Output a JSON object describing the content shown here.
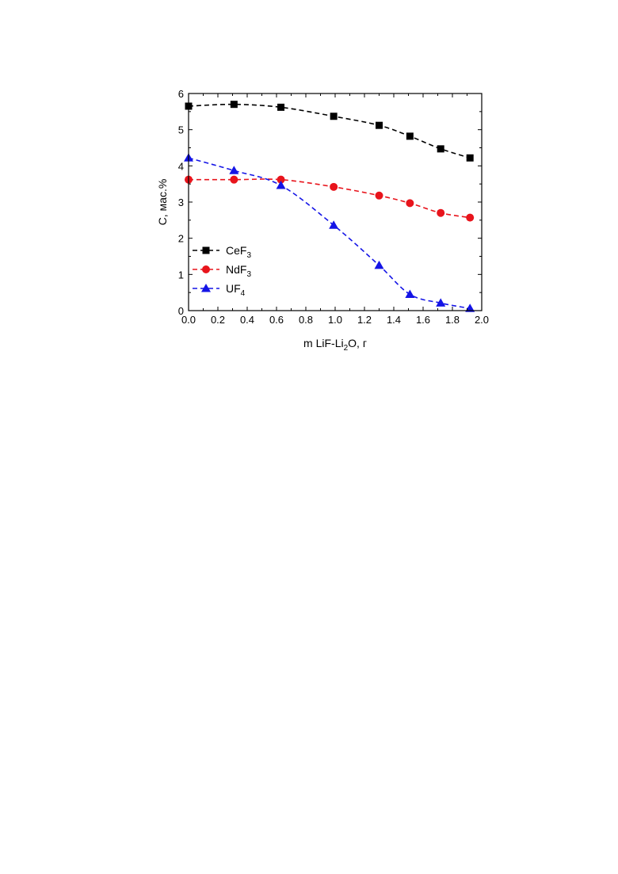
{
  "chart_data": {
    "type": "line",
    "xlabel": {
      "main": "m LiF-Li",
      "sub": "2",
      "tail": "O, г"
    },
    "ylabel": "C, мас.%",
    "xlim": [
      0.0,
      2.0
    ],
    "ylim": [
      0,
      6
    ],
    "x_ticks": [
      "0.0",
      "0.2",
      "0.4",
      "0.6",
      "0.8",
      "1.0",
      "1.2",
      "1.4",
      "1.6",
      "1.8",
      "2.0"
    ],
    "y_ticks": [
      "0",
      "1",
      "2",
      "3",
      "4",
      "5",
      "6"
    ],
    "legend_position": "bottom-left",
    "series": [
      {
        "name": "CeF",
        "sub": "3",
        "color": "#000000",
        "marker": "square",
        "x": [
          0.0,
          0.31,
          0.63,
          0.99,
          1.3,
          1.51,
          1.72,
          1.92
        ],
        "y": [
          5.65,
          5.7,
          5.62,
          5.37,
          5.12,
          4.82,
          4.47,
          4.22
        ]
      },
      {
        "name": "NdF",
        "sub": "3",
        "color": "#e8141c",
        "marker": "circle",
        "x": [
          0.0,
          0.31,
          0.63,
          0.99,
          1.3,
          1.51,
          1.72,
          1.92
        ],
        "y": [
          3.62,
          3.62,
          3.62,
          3.42,
          3.18,
          2.97,
          2.7,
          2.57
        ]
      },
      {
        "name": "UF",
        "sub": "4",
        "color": "#1414e6",
        "marker": "triangle",
        "x": [
          0.0,
          0.31,
          0.63,
          0.99,
          1.3,
          1.51,
          1.72,
          1.92
        ],
        "y": [
          4.22,
          3.87,
          3.46,
          2.36,
          1.25,
          0.45,
          0.21,
          0.06
        ]
      }
    ]
  }
}
